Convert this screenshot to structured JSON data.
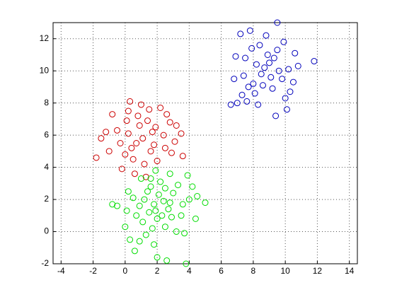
{
  "chart_data": {
    "type": "scatter",
    "xlim": [
      -4.5,
      14.5
    ],
    "xticks": [
      -4,
      -2,
      0,
      2,
      4,
      6,
      8,
      10,
      12,
      14
    ],
    "ylim": [
      -2,
      13
    ],
    "yticks": [
      -2,
      0,
      2,
      4,
      6,
      8,
      10,
      12
    ],
    "grid": true,
    "series": [
      {
        "color": "#cc0000",
        "x": [
          0.2,
          1.1,
          -0.5,
          0.8,
          1.9,
          2.5,
          0.0,
          -1.8,
          -1.2,
          0.3,
          1.5,
          3.5,
          3.6,
          0.6,
          1.2,
          -0.3,
          2.2,
          0.9,
          1.6,
          2.8,
          -0.8,
          0.4,
          1.3,
          2.0,
          -1.0,
          0.1,
          1.7,
          2.4,
          0.7,
          -0.2,
          3.1,
          1.0,
          2.9,
          0.5,
          -1.5,
          1.4,
          2.6,
          0.2,
          1.8,
          3.2
        ],
        "values": [
          6.1,
          5.8,
          6.3,
          7.2,
          6.5,
          5.2,
          4.8,
          4.6,
          6.2,
          8.1,
          7.6,
          6.1,
          4.7,
          3.6,
          4.2,
          5.5,
          7.7,
          6.6,
          5.0,
          6.8,
          7.3,
          5.2,
          3.4,
          4.4,
          5.0,
          6.9,
          6.2,
          6.0,
          5.5,
          3.9,
          5.6,
          7.9,
          4.9,
          4.5,
          5.8,
          6.9,
          7.3,
          7.5,
          5.4,
          6.6
        ]
      },
      {
        "color": "#0000bb",
        "x": [
          8.5,
          9.0,
          7.5,
          8.0,
          9.5,
          10.2,
          7.0,
          6.8,
          8.8,
          9.5,
          7.2,
          11.8,
          10.8,
          10.3,
          9.4,
          10.1,
          8.3,
          7.6,
          6.6,
          7.8,
          8.9,
          9.8,
          8.2,
          7.4,
          9.2,
          10.5,
          8.6,
          7.9,
          9.6,
          8.1,
          10.6,
          6.9,
          9.1,
          8.4,
          7.7,
          9.9,
          10.0,
          8.7,
          7.3,
          9.3
        ],
        "values": [
          9.8,
          10.5,
          10.8,
          9.2,
          11.3,
          10.1,
          8.0,
          9.5,
          12.2,
          13.0,
          12.3,
          10.6,
          10.3,
          8.7,
          7.2,
          7.6,
          7.9,
          8.1,
          7.9,
          12.5,
          11.0,
          9.5,
          10.4,
          9.7,
          8.9,
          9.3,
          9.1,
          11.4,
          10.0,
          8.6,
          11.1,
          10.9,
          9.6,
          11.6,
          9.0,
          11.8,
          8.3,
          10.2,
          8.5,
          10.8
        ]
      },
      {
        "color": "#00dd00",
        "x": [
          1.8,
          2.1,
          1.5,
          2.4,
          1.2,
          2.7,
          0.9,
          2.0,
          1.6,
          3.0,
          3.5,
          4.0,
          4.5,
          5.0,
          3.9,
          2.8,
          1.9,
          1.0,
          0.2,
          -0.5,
          -0.8,
          0.0,
          0.3,
          0.6,
          1.8,
          2.0,
          2.6,
          3.8,
          3.2,
          3.7,
          4.4,
          1.1,
          2.3,
          1.4,
          2.5,
          0.7,
          1.7,
          2.9,
          3.3,
          0.5,
          1.3,
          2.2,
          3.6,
          0.1,
          1.9,
          2.5,
          4.2,
          1.6,
          0.9,
          2.8
        ],
        "values": [
          1.7,
          2.3,
          1.2,
          1.9,
          2.0,
          1.4,
          1.6,
          0.8,
          2.8,
          2.4,
          1.0,
          2.0,
          2.2,
          1.8,
          3.5,
          3.6,
          3.8,
          3.3,
          2.5,
          1.6,
          1.7,
          0.3,
          -0.5,
          -1.2,
          -0.8,
          -1.6,
          -1.8,
          -2.0,
          0.0,
          -0.1,
          0.8,
          0.6,
          1.0,
          2.5,
          2.7,
          1.0,
          0.2,
          0.9,
          2.9,
          2.1,
          -0.2,
          3.1,
          1.7,
          1.3,
          1.3,
          0.3,
          2.8,
          3.3,
          -0.6,
          1.8
        ]
      }
    ]
  }
}
